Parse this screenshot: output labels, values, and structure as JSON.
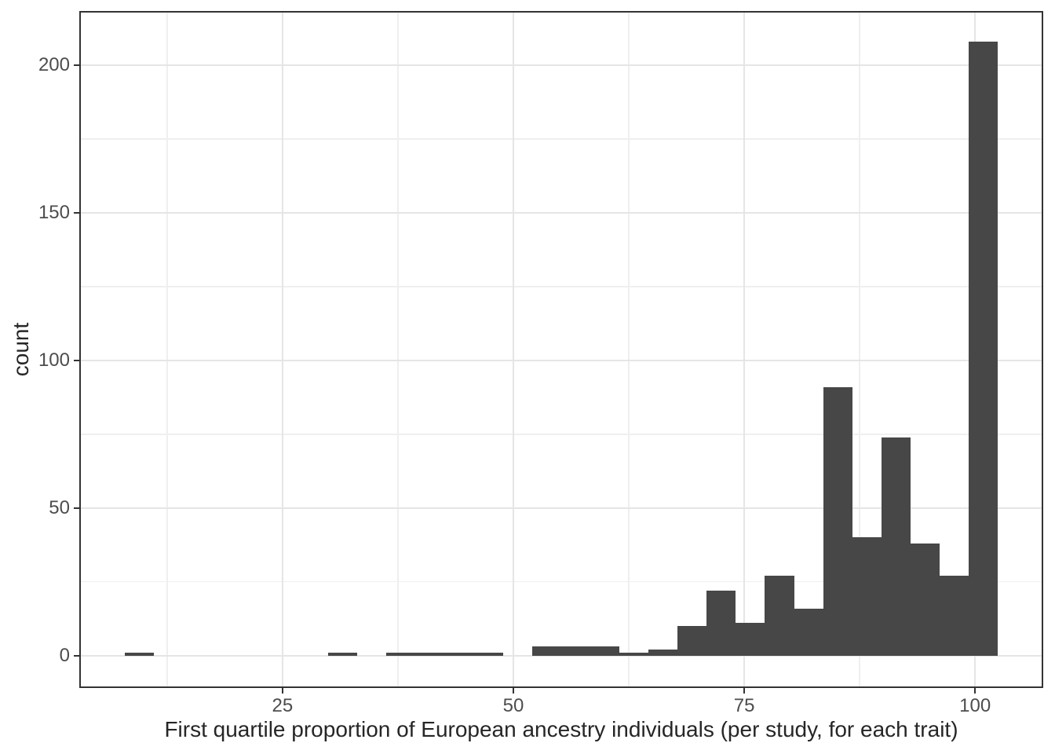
{
  "figure": {
    "background": "#ffffff"
  },
  "chart_data": {
    "type": "bar",
    "subtype": "histogram",
    "title": "",
    "xlabel": "First quartile proportion of European ancestry individuals (per study, for each trait)",
    "ylabel": "count",
    "bin_start": 7.9,
    "bin_width": 3.152,
    "counts": [
      1,
      0,
      0,
      0,
      0,
      0,
      0,
      1,
      0,
      1,
      1,
      1,
      1,
      0,
      3,
      3,
      3,
      1,
      2,
      10,
      22,
      11,
      27,
      16,
      91,
      40,
      74,
      38,
      27,
      208
    ],
    "x_ticks": [
      25,
      50,
      75,
      100
    ],
    "y_ticks": [
      0,
      50,
      100,
      150,
      200
    ],
    "x_minor_gridlines": [
      12.5,
      37.5,
      62.5,
      87.5
    ],
    "y_minor_gridlines": [
      25,
      75,
      125,
      175
    ],
    "xlim": [
      3.16,
      107.21
    ],
    "ylim": [
      -10.45,
      217.8
    ],
    "grid": true,
    "legend_position": "none",
    "colors": {
      "bar_fill": "#474747",
      "panel_border": "#333333",
      "grid_major": "#e5e5e5",
      "grid_minor": "#efefef",
      "tick_mark": "#333333",
      "tick_label": "#4d4d4d",
      "axis_title": "#262626",
      "panel_background": "#ffffff"
    }
  }
}
